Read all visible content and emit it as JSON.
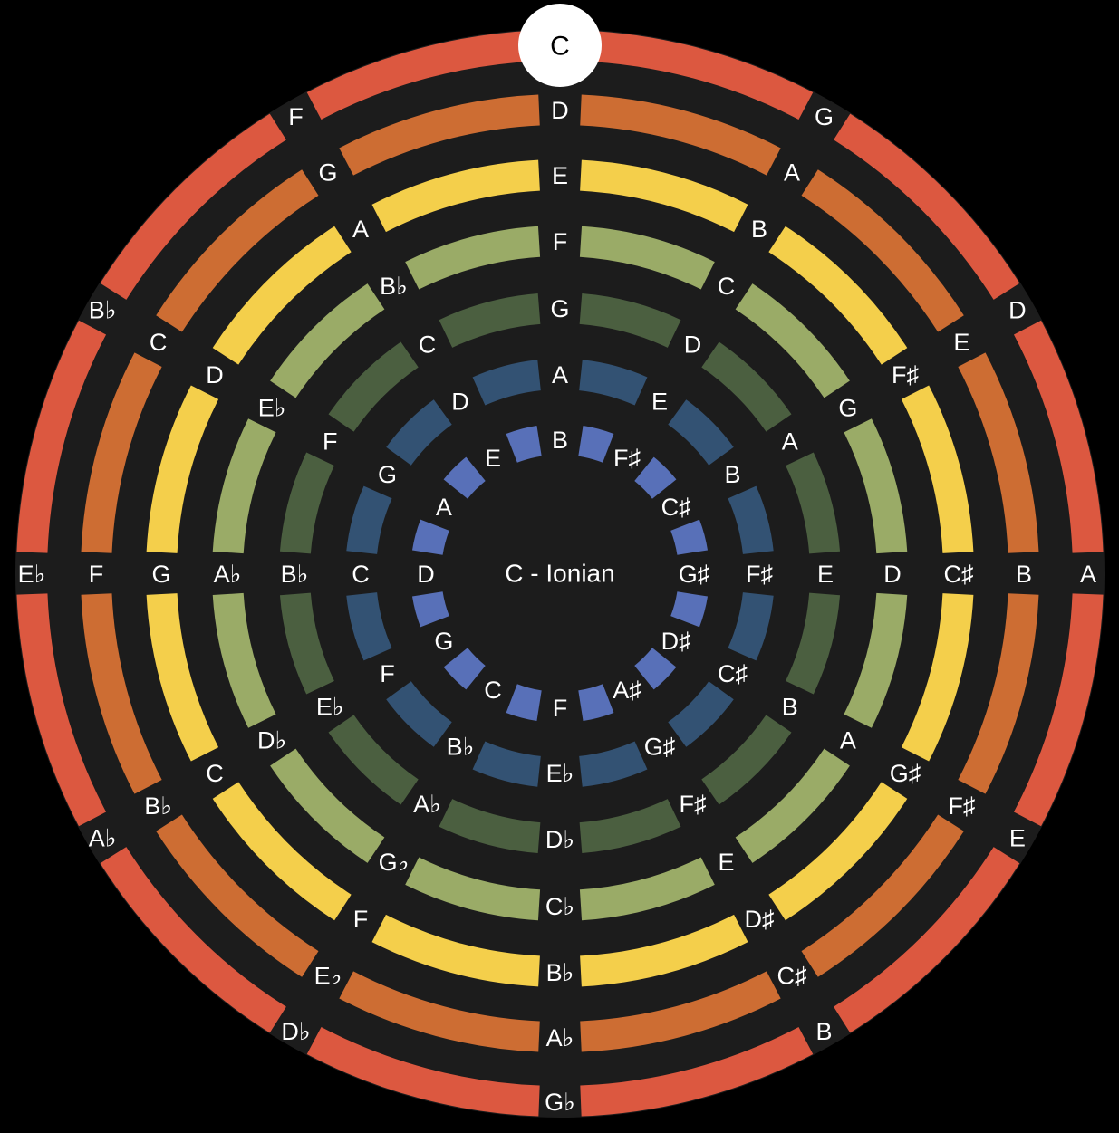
{
  "center_label": "C - Ionian",
  "root_note": "C",
  "colors": {
    "background": "#000000",
    "disc": "#1c1c1c",
    "root_marker": "#ffffff",
    "text": "#ffffff",
    "rings": [
      "#dc5840",
      "#cd6d33",
      "#f4cf4b",
      "#9aab67",
      "#4b5f40",
      "#335273",
      "#5870b8"
    ]
  },
  "rings": [
    {
      "name": "ring-1",
      "notes": [
        "C",
        "G",
        "D",
        "A",
        "E",
        "B",
        "Gb",
        "Db",
        "Ab",
        "Eb",
        "Bb",
        "F"
      ]
    },
    {
      "name": "ring-2",
      "notes": [
        "D",
        "A",
        "E",
        "B",
        "F#",
        "C#",
        "Ab",
        "Eb",
        "Bb",
        "F",
        "C",
        "G"
      ]
    },
    {
      "name": "ring-3",
      "notes": [
        "E",
        "B",
        "F#",
        "C#",
        "G#",
        "D#",
        "Bb",
        "F",
        "C",
        "G",
        "D",
        "A"
      ]
    },
    {
      "name": "ring-4",
      "notes": [
        "F",
        "C",
        "G",
        "D",
        "A",
        "E",
        "Cb",
        "Gb",
        "Db",
        "Ab",
        "Eb",
        "Bb"
      ]
    },
    {
      "name": "ring-5",
      "notes": [
        "G",
        "D",
        "A",
        "E",
        "B",
        "F#",
        "Db",
        "Ab",
        "Eb",
        "Bb",
        "F",
        "C"
      ]
    },
    {
      "name": "ring-6",
      "notes": [
        "A",
        "E",
        "B",
        "F#",
        "C#",
        "G#",
        "Eb",
        "Bb",
        "F",
        "C",
        "G",
        "D"
      ]
    },
    {
      "name": "ring-7",
      "notes": [
        "B",
        "F#",
        "C#",
        "G#",
        "D#",
        "A#",
        "F",
        "C",
        "G",
        "D",
        "A",
        "E"
      ]
    }
  ]
}
